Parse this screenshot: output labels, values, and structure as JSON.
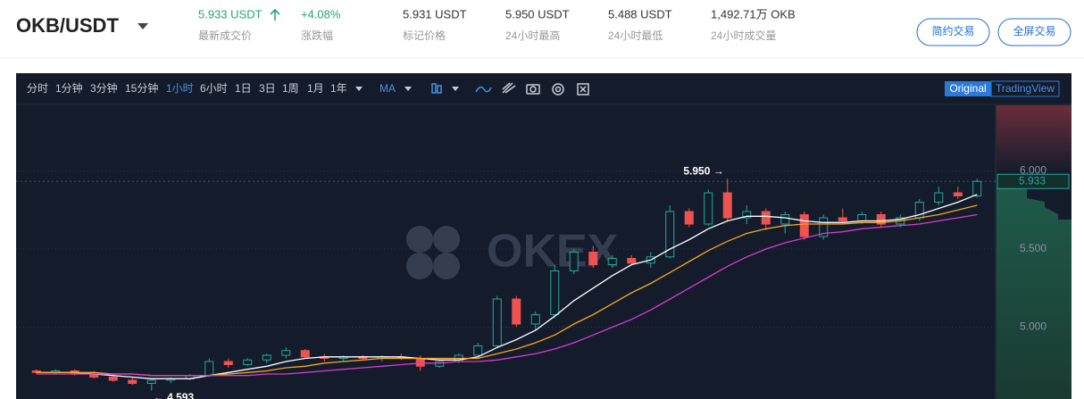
{
  "header": {
    "pair": "OKB/USDT",
    "stats": [
      {
        "value": "5.933 USDT",
        "label": "最新成交价"
      },
      {
        "value": "+4.08%",
        "label": "涨跌幅"
      },
      {
        "value": "5.931 USDT",
        "label": "标记价格"
      },
      {
        "value": "5.950 USDT",
        "label": "24小时最高"
      },
      {
        "value": "5.488 USDT",
        "label": "24小时最低"
      },
      {
        "value": "1,492.71万 OKB",
        "label": "24小时成交量"
      }
    ],
    "buttons": [
      "简约交易",
      "全屏交易"
    ]
  },
  "toolbar": {
    "intervals": [
      "分时",
      "1分钟",
      "3分钟",
      "15分钟",
      "1小时",
      "6小时",
      "1日",
      "3日",
      "1周",
      "1月",
      "1年"
    ],
    "indicator": "MA",
    "views": [
      "Original",
      "TradingView"
    ]
  },
  "chart_data": {
    "type": "candlestick",
    "watermark": "OKEX",
    "ylim": [
      4.54,
      6.42
    ],
    "yticks": [
      {
        "value": 5,
        "label": "5.000"
      },
      {
        "value": 5.5,
        "label": "5.500"
      },
      {
        "value": 6,
        "label": "6.000"
      }
    ],
    "grid": true,
    "up_color": "#26a69a",
    "down_color": "#ef5350",
    "last_price": 5.933,
    "high_label": "5.950 →",
    "low_label": "← 4.593",
    "candles": [
      {
        "open": 4.72,
        "high": 4.73,
        "low": 4.7,
        "close": 4.71
      },
      {
        "open": 4.71,
        "high": 4.73,
        "low": 4.7,
        "close": 4.72
      },
      {
        "open": 4.72,
        "high": 4.73,
        "low": 4.69,
        "close": 4.7
      },
      {
        "open": 4.7,
        "high": 4.72,
        "low": 4.67,
        "close": 4.68
      },
      {
        "open": 4.68,
        "high": 4.7,
        "low": 4.65,
        "close": 4.66
      },
      {
        "open": 4.66,
        "high": 4.68,
        "low": 4.63,
        "close": 4.64
      },
      {
        "open": 4.64,
        "high": 4.67,
        "low": 4.593,
        "close": 4.66
      },
      {
        "open": 4.66,
        "high": 4.68,
        "low": 4.64,
        "close": 4.67
      },
      {
        "open": 4.67,
        "high": 4.7,
        "low": 4.66,
        "close": 4.69
      },
      {
        "open": 4.69,
        "high": 4.8,
        "low": 4.68,
        "close": 4.78
      },
      {
        "open": 4.78,
        "high": 4.8,
        "low": 4.74,
        "close": 4.76
      },
      {
        "open": 4.76,
        "high": 4.8,
        "low": 4.75,
        "close": 4.79
      },
      {
        "open": 4.79,
        "high": 4.83,
        "low": 4.77,
        "close": 4.82
      },
      {
        "open": 4.82,
        "high": 4.87,
        "low": 4.8,
        "close": 4.85
      },
      {
        "open": 4.85,
        "high": 4.86,
        "low": 4.8,
        "close": 4.81
      },
      {
        "open": 4.81,
        "high": 4.83,
        "low": 4.78,
        "close": 4.8
      },
      {
        "open": 4.8,
        "high": 4.82,
        "low": 4.78,
        "close": 4.81
      },
      {
        "open": 4.81,
        "high": 4.82,
        "low": 4.79,
        "close": 4.8
      },
      {
        "open": 4.8,
        "high": 4.82,
        "low": 4.78,
        "close": 4.81
      },
      {
        "open": 4.81,
        "high": 4.83,
        "low": 4.79,
        "close": 4.8
      },
      {
        "open": 4.8,
        "high": 4.82,
        "low": 4.72,
        "close": 4.75
      },
      {
        "open": 4.75,
        "high": 4.79,
        "low": 4.74,
        "close": 4.78
      },
      {
        "open": 4.78,
        "high": 4.83,
        "low": 4.77,
        "close": 4.82
      },
      {
        "open": 4.82,
        "high": 4.9,
        "low": 4.81,
        "close": 4.88
      },
      {
        "open": 4.88,
        "high": 5.2,
        "low": 4.87,
        "close": 5.18
      },
      {
        "open": 5.18,
        "high": 5.2,
        "low": 5.0,
        "close": 5.02
      },
      {
        "open": 5.02,
        "high": 5.1,
        "low": 4.98,
        "close": 5.08
      },
      {
        "open": 5.08,
        "high": 5.4,
        "low": 5.06,
        "close": 5.36
      },
      {
        "open": 5.36,
        "high": 5.5,
        "low": 5.34,
        "close": 5.48
      },
      {
        "open": 5.48,
        "high": 5.52,
        "low": 5.38,
        "close": 5.4
      },
      {
        "open": 5.4,
        "high": 5.46,
        "low": 5.38,
        "close": 5.44
      },
      {
        "open": 5.44,
        "high": 5.46,
        "low": 5.4,
        "close": 5.41
      },
      {
        "open": 5.41,
        "high": 5.48,
        "low": 5.38,
        "close": 5.45
      },
      {
        "open": 5.45,
        "high": 5.78,
        "low": 5.44,
        "close": 5.74
      },
      {
        "open": 5.74,
        "high": 5.76,
        "low": 5.64,
        "close": 5.66
      },
      {
        "open": 5.66,
        "high": 5.88,
        "low": 5.65,
        "close": 5.86
      },
      {
        "open": 5.86,
        "high": 5.95,
        "low": 5.68,
        "close": 5.7
      },
      {
        "open": 5.7,
        "high": 5.78,
        "low": 5.66,
        "close": 5.74
      },
      {
        "open": 5.74,
        "high": 5.76,
        "low": 5.62,
        "close": 5.66
      },
      {
        "open": 5.66,
        "high": 5.74,
        "low": 5.6,
        "close": 5.72
      },
      {
        "open": 5.72,
        "high": 5.74,
        "low": 5.56,
        "close": 5.58
      },
      {
        "open": 5.58,
        "high": 5.72,
        "low": 5.56,
        "close": 5.7
      },
      {
        "open": 5.7,
        "high": 5.76,
        "low": 5.66,
        "close": 5.68
      },
      {
        "open": 5.68,
        "high": 5.74,
        "low": 5.66,
        "close": 5.72
      },
      {
        "open": 5.72,
        "high": 5.74,
        "low": 5.64,
        "close": 5.66
      },
      {
        "open": 5.66,
        "high": 5.72,
        "low": 5.64,
        "close": 5.7
      },
      {
        "open": 5.7,
        "high": 5.82,
        "low": 5.68,
        "close": 5.8
      },
      {
        "open": 5.8,
        "high": 5.9,
        "low": 5.78,
        "close": 5.86
      },
      {
        "open": 5.86,
        "high": 5.9,
        "low": 5.82,
        "close": 5.84
      },
      {
        "open": 5.84,
        "high": 5.95,
        "low": 5.83,
        "close": 5.933
      }
    ],
    "series": [
      {
        "color": "#ffffff",
        "values": [
          4.71,
          4.71,
          4.71,
          4.7,
          4.69,
          4.68,
          4.67,
          4.67,
          4.67,
          4.69,
          4.71,
          4.73,
          4.75,
          4.78,
          4.8,
          4.81,
          4.81,
          4.81,
          4.81,
          4.81,
          4.8,
          4.79,
          4.79,
          4.81,
          4.87,
          4.92,
          4.98,
          5.07,
          5.17,
          5.25,
          5.33,
          5.4,
          5.43,
          5.5,
          5.56,
          5.63,
          5.68,
          5.71,
          5.71,
          5.7,
          5.68,
          5.67,
          5.67,
          5.68,
          5.68,
          5.69,
          5.72,
          5.76,
          5.8,
          5.85
        ]
      },
      {
        "color": "#f5a623",
        "values": [
          4.71,
          4.71,
          4.71,
          4.71,
          4.7,
          4.7,
          4.69,
          4.69,
          4.69,
          4.69,
          4.7,
          4.71,
          4.72,
          4.74,
          4.75,
          4.77,
          4.78,
          4.79,
          4.8,
          4.8,
          4.8,
          4.8,
          4.8,
          4.8,
          4.83,
          4.86,
          4.9,
          4.95,
          5.02,
          5.08,
          5.15,
          5.22,
          5.28,
          5.35,
          5.42,
          5.49,
          5.55,
          5.6,
          5.63,
          5.65,
          5.66,
          5.66,
          5.66,
          5.67,
          5.67,
          5.68,
          5.7,
          5.72,
          5.75,
          5.78
        ]
      },
      {
        "color": "#d63cd0",
        "values": [
          4.7,
          4.7,
          4.7,
          4.7,
          4.7,
          4.7,
          4.69,
          4.69,
          4.69,
          4.69,
          4.69,
          4.69,
          4.7,
          4.7,
          4.71,
          4.72,
          4.73,
          4.74,
          4.75,
          4.76,
          4.77,
          4.77,
          4.78,
          4.78,
          4.79,
          4.81,
          4.83,
          4.86,
          4.9,
          4.95,
          5.0,
          5.05,
          5.11,
          5.18,
          5.25,
          5.32,
          5.39,
          5.45,
          5.5,
          5.54,
          5.57,
          5.6,
          5.61,
          5.63,
          5.64,
          5.65,
          5.66,
          5.68,
          5.7,
          5.72
        ]
      }
    ]
  }
}
